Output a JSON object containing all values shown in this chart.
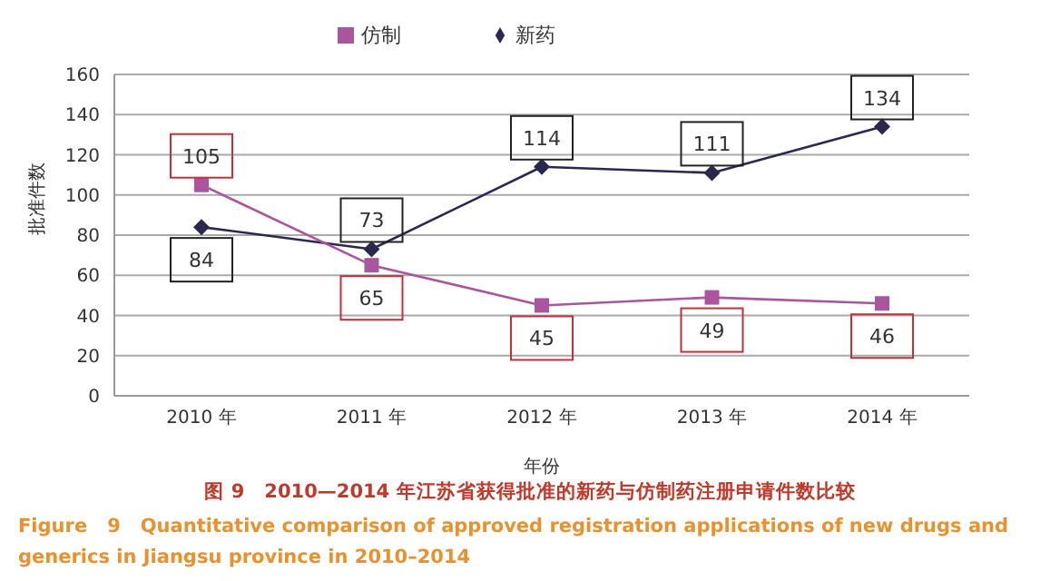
{
  "chart_data": {
    "type": "line",
    "xlabel": "年份",
    "ylabel": "批准件数",
    "categories": [
      "2010 年",
      "2011 年",
      "2012 年",
      "2013 年",
      "2014 年"
    ],
    "series": [
      {
        "name": "新药",
        "color": "#2b2850",
        "marker": "diamond",
        "values": [
          84,
          73,
          114,
          111,
          134
        ]
      },
      {
        "name": "仿制",
        "color": "#a9569f",
        "marker": "square",
        "values": [
          105,
          65,
          45,
          49,
          46
        ]
      }
    ],
    "ylim": [
      0,
      160
    ],
    "yticks": [
      0,
      20,
      40,
      60,
      80,
      100,
      120,
      140,
      160
    ],
    "grid": "y",
    "legend": "top",
    "data_labels": true,
    "annotations": [
      "图 9　2010—2014 年江苏省获得批准的新药与仿制药注册申请件数比较",
      "Figure　9　Quantitative comparison of approved registration applications of new drugs and generics in Jiangsu province in 2010–2014"
    ]
  }
}
